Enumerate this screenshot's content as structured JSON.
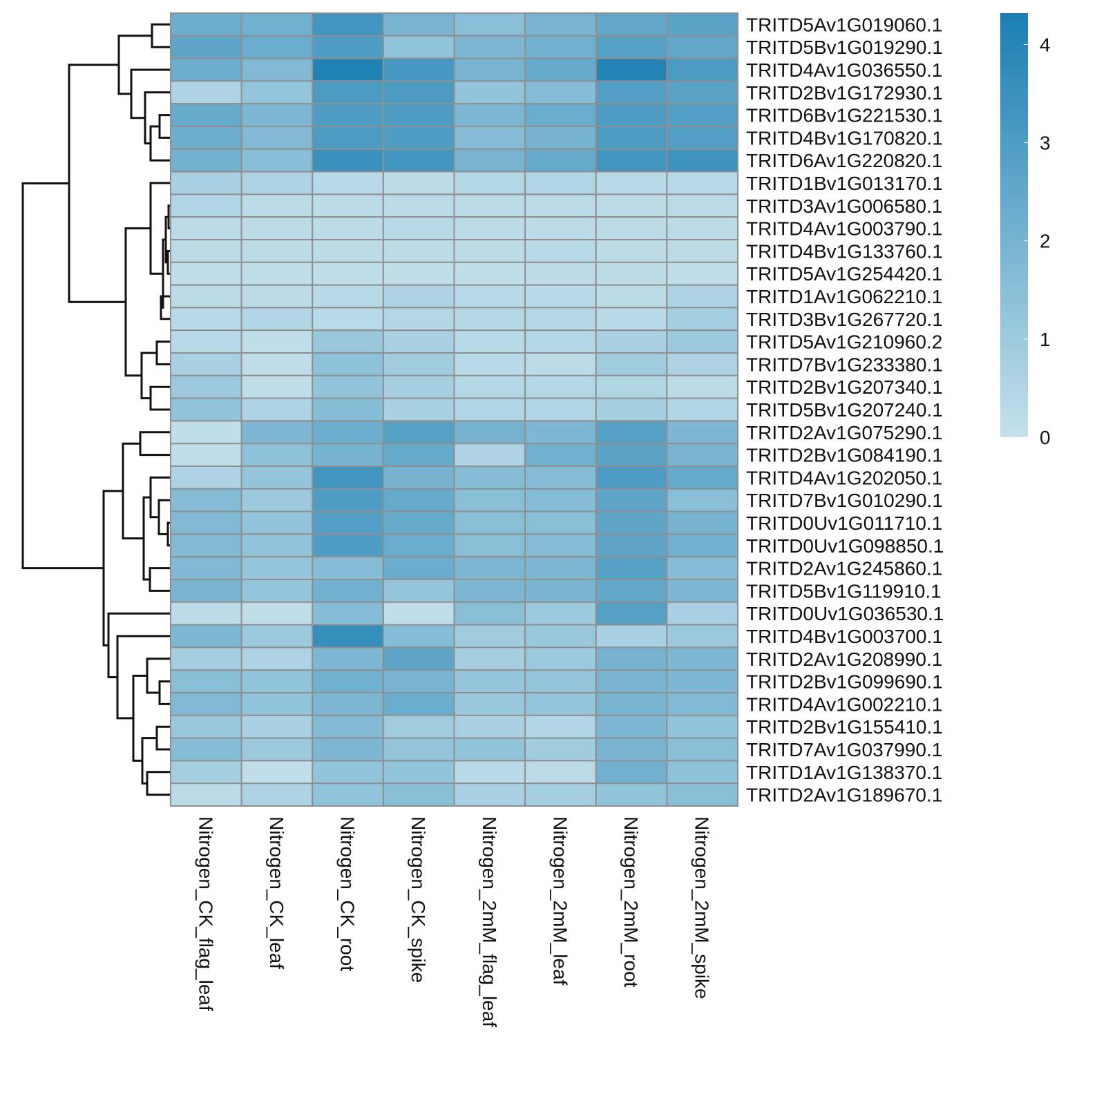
{
  "chart_data": {
    "type": "heatmap",
    "rows": [
      "TRITD5Av1G019060.1",
      "TRITD5Bv1G019290.1",
      "TRITD4Av1G036550.1",
      "TRITD2Bv1G172930.1",
      "TRITD6Bv1G221530.1",
      "TRITD4Bv1G170820.1",
      "TRITD6Av1G220820.1",
      "TRITD1Bv1G013170.1",
      "TRITD3Av1G006580.1",
      "TRITD4Av1G003790.1",
      "TRITD4Bv1G133760.1",
      "TRITD5Av1G254420.1",
      "TRITD1Av1G062210.1",
      "TRITD3Bv1G267720.1",
      "TRITD5Av1G210960.2",
      "TRITD7Bv1G233380.1",
      "TRITD2Bv1G207340.1",
      "TRITD5Bv1G207240.1",
      "TRITD2Av1G075290.1",
      "TRITD2Bv1G084190.1",
      "TRITD4Av1G202050.1",
      "TRITD7Bv1G010290.1",
      "TRITD0Uv1G011710.1",
      "TRITD0Uv1G098850.1",
      "TRITD2Av1G245860.1",
      "TRITD5Bv1G119910.1",
      "TRITD0Uv1G036530.1",
      "TRITD4Bv1G003700.1",
      "TRITD2Av1G208990.1",
      "TRITD2Bv1G099690.1",
      "TRITD4Av1G002210.1",
      "TRITD2Bv1G155410.1",
      "TRITD7Av1G037990.1",
      "TRITD1Av1G138370.1",
      "TRITD2Av1G189670.1"
    ],
    "columns": [
      "Nitrogen_CK_flag_leaf",
      "Nitrogen_CK_leaf",
      "Nitrogen_CK_root",
      "Nitrogen_CK_spike",
      "Nitrogen_2mM_flag_leaf",
      "Nitrogen_2mM_leaf",
      "Nitrogen_2mM_root",
      "Nitrogen_2mM_spike"
    ],
    "values": [
      [
        2.2,
        2.1,
        3.3,
        1.9,
        1.5,
        1.9,
        2.5,
        2.7
      ],
      [
        2.6,
        2.3,
        3.0,
        1.3,
        1.8,
        2.1,
        2.8,
        2.5
      ],
      [
        2.2,
        1.7,
        4.2,
        3.2,
        1.9,
        2.4,
        4.1,
        3.1
      ],
      [
        0.6,
        1.2,
        3.1,
        3.1,
        1.3,
        1.6,
        2.9,
        2.7
      ],
      [
        2.4,
        1.8,
        3.0,
        3.0,
        1.8,
        2.3,
        3.0,
        2.9
      ],
      [
        2.2,
        1.7,
        3.1,
        3.0,
        1.6,
        2.0,
        3.1,
        2.9
      ],
      [
        2.1,
        1.5,
        3.5,
        3.3,
        1.9,
        2.4,
        3.3,
        3.4
      ],
      [
        0.7,
        0.6,
        0.3,
        0.2,
        0.4,
        0.5,
        0.3,
        0.3
      ],
      [
        0.5,
        0.2,
        0.2,
        0.2,
        0.2,
        0.2,
        0.2,
        0.2
      ],
      [
        0.2,
        0.2,
        0.2,
        0.3,
        0.2,
        0.2,
        0.2,
        0.2
      ],
      [
        0.2,
        0.2,
        0.2,
        0.2,
        0.2,
        0.3,
        0.2,
        0.2
      ],
      [
        0.1,
        0.1,
        0.1,
        0.1,
        0.1,
        0.2,
        0.2,
        0.1
      ],
      [
        0.2,
        0.2,
        0.3,
        0.6,
        0.3,
        0.3,
        0.2,
        0.6
      ],
      [
        0.3,
        0.5,
        0.3,
        0.4,
        0.4,
        0.4,
        0.3,
        0.8
      ],
      [
        0.3,
        0.1,
        1.1,
        0.7,
        0.3,
        0.4,
        0.7,
        1.0
      ],
      [
        0.7,
        0.1,
        1.4,
        0.9,
        0.3,
        0.2,
        0.9,
        0.6
      ],
      [
        1.0,
        0.1,
        1.3,
        0.8,
        0.4,
        0.4,
        0.5,
        0.2
      ],
      [
        1.3,
        0.6,
        1.6,
        0.7,
        0.5,
        0.5,
        0.8,
        0.5
      ],
      [
        0.1,
        1.8,
        2.2,
        2.8,
        2.0,
        1.8,
        2.8,
        1.8
      ],
      [
        0.1,
        1.4,
        2.0,
        2.4,
        0.6,
        2.1,
        2.7,
        1.9
      ],
      [
        0.6,
        1.2,
        3.3,
        2.0,
        1.6,
        1.6,
        3.0,
        2.4
      ],
      [
        1.6,
        1.0,
        3.0,
        2.4,
        1.5,
        1.6,
        2.6,
        1.5
      ],
      [
        1.7,
        1.3,
        2.9,
        2.4,
        1.5,
        1.5,
        2.6,
        2.0
      ],
      [
        1.7,
        1.3,
        3.0,
        2.3,
        1.5,
        1.6,
        2.6,
        2.1
      ],
      [
        1.7,
        1.2,
        1.6,
        2.3,
        1.8,
        1.8,
        2.8,
        1.6
      ],
      [
        1.9,
        1.2,
        2.1,
        1.2,
        1.8,
        1.9,
        2.5,
        1.8
      ],
      [
        0.2,
        0.1,
        1.6,
        0.1,
        1.5,
        1.0,
        2.8,
        0.7
      ],
      [
        1.8,
        1.0,
        3.6,
        1.6,
        0.9,
        1.1,
        0.7,
        1.0
      ],
      [
        0.8,
        0.6,
        1.8,
        2.6,
        0.8,
        1.0,
        2.0,
        1.8
      ],
      [
        1.5,
        1.3,
        2.1,
        1.9,
        1.2,
        1.2,
        1.9,
        1.8
      ],
      [
        1.7,
        1.3,
        1.8,
        2.3,
        1.1,
        1.2,
        1.9,
        1.7
      ],
      [
        1.1,
        0.7,
        1.7,
        0.9,
        0.7,
        0.5,
        1.8,
        1.3
      ],
      [
        1.6,
        1.0,
        1.8,
        1.2,
        1.3,
        0.9,
        1.9,
        1.5
      ],
      [
        0.8,
        0.1,
        1.3,
        1.3,
        0.3,
        0.2,
        2.1,
        1.4
      ],
      [
        0.2,
        0.6,
        1.3,
        1.5,
        0.7,
        0.8,
        1.3,
        1.5
      ]
    ],
    "colorscale": [
      "#c4e0eb",
      "#1a7eb2"
    ],
    "zlim": [
      0,
      4.32
    ],
    "zticks": [
      0,
      1,
      2,
      3,
      4
    ]
  }
}
